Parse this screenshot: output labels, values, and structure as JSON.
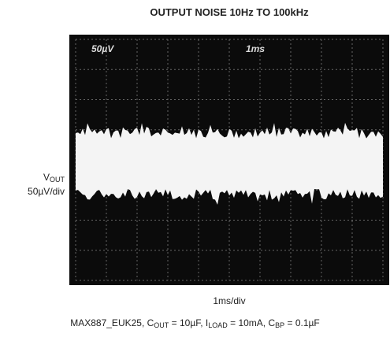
{
  "title": "OUTPUT NOISE 10Hz TO 100kHz",
  "y_label": {
    "symbol": "V",
    "subscript": "OUT",
    "scale": "50µV/div"
  },
  "screen": {
    "channel": "50µV",
    "timebase": "1ms"
  },
  "x_label": "1ms/div",
  "caption": [
    "MAX887_EUK25, C",
    "OUT",
    " = 10µF, I",
    "LOAD",
    " = 10mA, C",
    "BP",
    " = 0.1µF"
  ]
}
